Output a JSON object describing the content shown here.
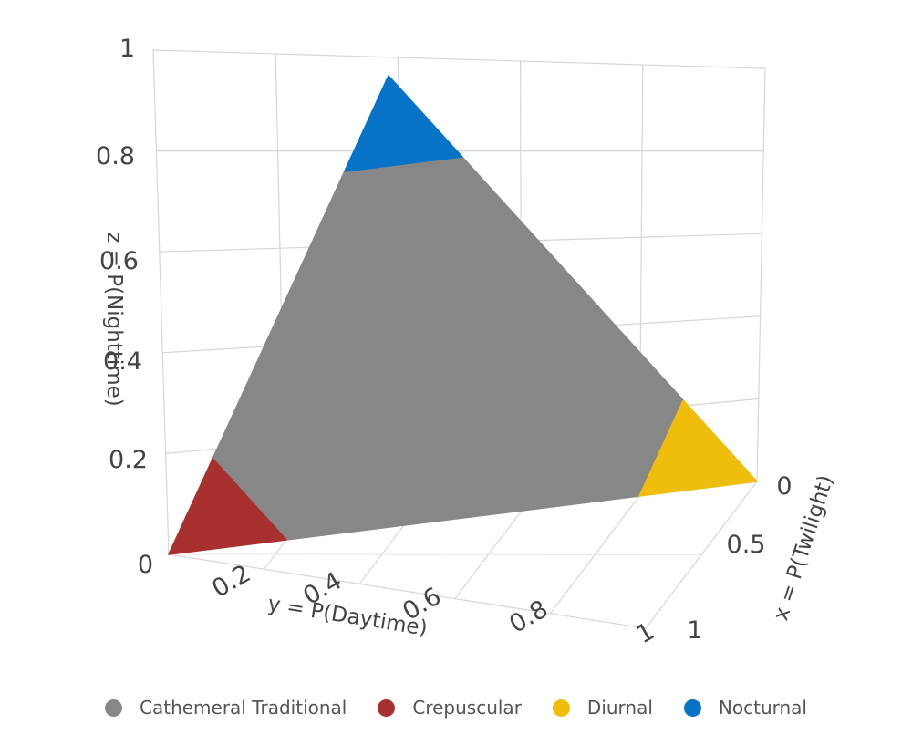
{
  "chart_data": {
    "type": "scatter3d",
    "title": "",
    "axes": {
      "x": {
        "title": "x = P(Twilight)",
        "range": [
          1,
          0
        ],
        "ticks": [
          0,
          0.5,
          1
        ]
      },
      "y": {
        "title": "y = P(Daytime)",
        "range": [
          0,
          1
        ],
        "ticks": [
          0.2,
          0.4,
          0.6,
          0.8,
          1
        ]
      },
      "z": {
        "title": "z = P(Nighttime)",
        "range": [
          0,
          1
        ],
        "ticks": [
          0,
          0.2,
          0.4,
          0.6,
          0.8,
          1
        ]
      }
    },
    "constraint": "x + y + z = 1",
    "series": [
      {
        "name": "Cathemeral Traditional",
        "color": "#878787",
        "region": "x<0.8, y<0.8, z<0.8"
      },
      {
        "name": "Crepuscular",
        "color": "#a8302f",
        "region": "x>=0.8"
      },
      {
        "name": "Diurnal",
        "color": "#efbe0c",
        "region": "y>=0.8"
      },
      {
        "name": "Nocturnal",
        "color": "#0773c7",
        "region": "z>=0.8"
      }
    ],
    "grid": true,
    "legend_position": "bottom"
  },
  "legend": [
    {
      "label": "Cathemeral Traditional",
      "color": "#878787"
    },
    {
      "label": "Crepuscular",
      "color": "#a8302f"
    },
    {
      "label": "Diurnal",
      "color": "#efbe0c"
    },
    {
      "label": "Nocturnal",
      "color": "#0773c7"
    }
  ]
}
